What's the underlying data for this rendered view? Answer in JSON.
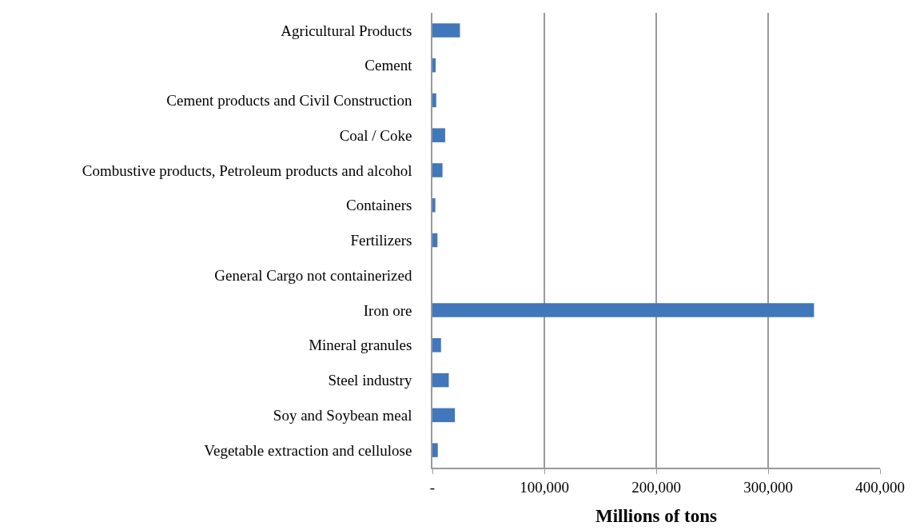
{
  "chart_data": {
    "type": "bar",
    "orientation": "horizontal",
    "xlabel": "Millions of tons",
    "categories": [
      "Agricultural Products",
      "Cement",
      "Cement products and Civil Construction",
      "Coal / Coke",
      "Combustive products, Petroleum products and alcohol",
      "Containers",
      "Fertilizers",
      "General Cargo not containerized",
      "Iron ore",
      "Mineral granules",
      "Steel industry",
      "Soy and Soybean meal",
      "Vegetable extraction and cellulose"
    ],
    "values": [
      24600,
      2900,
      3400,
      11400,
      9000,
      2600,
      4500,
      0,
      341000,
      7700,
      14600,
      20100,
      4800
    ],
    "color": "#4177bb",
    "xlim": [
      0,
      400000
    ],
    "xticks": [
      {
        "value": 0,
        "label": "-"
      },
      {
        "value": 100000,
        "label": "100,000"
      },
      {
        "value": 200000,
        "label": "200,000"
      },
      {
        "value": 300000,
        "label": "300,000"
      },
      {
        "value": 400000,
        "label": "400,000"
      }
    ],
    "grid": "x"
  }
}
